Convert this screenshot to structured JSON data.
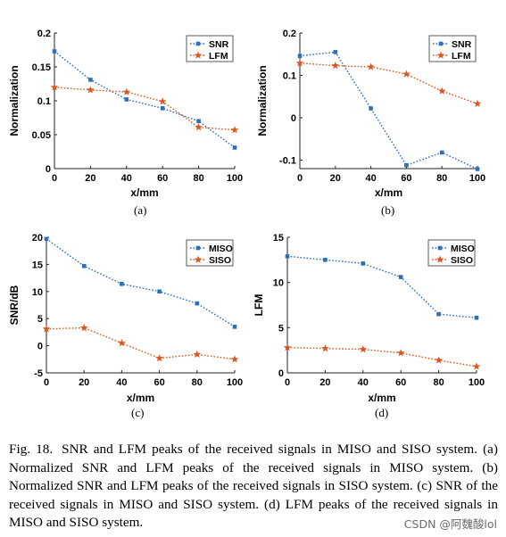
{
  "colors": {
    "series1": "#2e6fb5",
    "series2": "#d9581f",
    "axis": "#222222",
    "text": "#000000"
  },
  "chart_data": [
    {
      "type": "line",
      "panel_label": "(a)",
      "xlabel": "x/mm",
      "ylabel": "Normalization",
      "x": [
        0,
        20,
        40,
        60,
        80,
        100
      ],
      "xlim": [
        0,
        100
      ],
      "xticks": [
        "0",
        "20",
        "40",
        "60",
        "80",
        "100"
      ],
      "ylim": [
        0,
        0.2
      ],
      "yticks": [
        "0",
        "0.05",
        "0.1",
        "0.15",
        "0.2"
      ],
      "legend_position": "top-right",
      "grid": false,
      "series": [
        {
          "name": "SNR",
          "marker": "square",
          "values": [
            0.173,
            0.131,
            0.102,
            0.089,
            0.07,
            0.031
          ]
        },
        {
          "name": "LFM",
          "marker": "star",
          "values": [
            0.12,
            0.116,
            0.113,
            0.099,
            0.061,
            0.057
          ]
        }
      ]
    },
    {
      "type": "line",
      "panel_label": "(b)",
      "xlabel": "x/mm",
      "ylabel": "Normalization",
      "x": [
        0,
        20,
        40,
        60,
        80,
        100
      ],
      "xlim": [
        0,
        100
      ],
      "xticks": [
        "0",
        "20",
        "40",
        "60",
        "80",
        "100"
      ],
      "ylim": [
        -0.12,
        0.2
      ],
      "yticks": [
        "-0.1",
        "0",
        "0.1",
        "0.2"
      ],
      "legend_position": "top-right",
      "grid": false,
      "series": [
        {
          "name": "SNR",
          "marker": "square",
          "values": [
            0.146,
            0.155,
            0.022,
            -0.112,
            -0.082,
            -0.121
          ]
        },
        {
          "name": "LFM",
          "marker": "star",
          "values": [
            0.129,
            0.123,
            0.12,
            0.103,
            0.063,
            0.033
          ]
        }
      ]
    },
    {
      "type": "line",
      "panel_label": "(c)",
      "xlabel": "x/mm",
      "ylabel": "SNR/dB",
      "x": [
        0,
        20,
        40,
        60,
        80,
        100
      ],
      "xlim": [
        0,
        100
      ],
      "xticks": [
        "0",
        "20",
        "40",
        "60",
        "80",
        "100"
      ],
      "ylim": [
        -5,
        20
      ],
      "yticks": [
        "-5",
        "0",
        "5",
        "10",
        "15",
        "20"
      ],
      "legend_position": "top-right",
      "grid": false,
      "series": [
        {
          "name": "MISO",
          "marker": "square",
          "values": [
            19.7,
            14.7,
            11.4,
            10.0,
            7.8,
            3.5
          ]
        },
        {
          "name": "SISO",
          "marker": "star",
          "values": [
            3.1,
            3.3,
            0.5,
            -2.3,
            -1.6,
            -2.5
          ]
        }
      ]
    },
    {
      "type": "line",
      "panel_label": "(d)",
      "xlabel": "x/mm",
      "ylabel": "LFM",
      "x": [
        0,
        20,
        40,
        60,
        80,
        100
      ],
      "xlim": [
        0,
        100
      ],
      "xticks": [
        "0",
        "20",
        "40",
        "60",
        "80",
        "100"
      ],
      "ylim": [
        0,
        15
      ],
      "yticks": [
        "0",
        "5",
        "10",
        "15"
      ],
      "legend_position": "top-right",
      "grid": false,
      "series": [
        {
          "name": "MISO",
          "marker": "square",
          "values": [
            12.9,
            12.5,
            12.1,
            10.6,
            6.5,
            6.1
          ]
        },
        {
          "name": "SISO",
          "marker": "star",
          "values": [
            2.8,
            2.7,
            2.6,
            2.2,
            1.4,
            0.7
          ]
        }
      ]
    }
  ],
  "caption": {
    "label": "Fig. 18.",
    "text": "SNR and LFM peaks of the received signals in MISO and SISO system. (a) Normalized SNR and LFM peaks of the received signals in MISO system. (b) Normalized SNR and LFM peaks of the received signals in SISO system. (c) SNR of the received signals in MISO and SISO system. (d) LFM peaks of the received signals in MISO and SISO system."
  },
  "watermark": "CSDN @阿魏酸lol"
}
